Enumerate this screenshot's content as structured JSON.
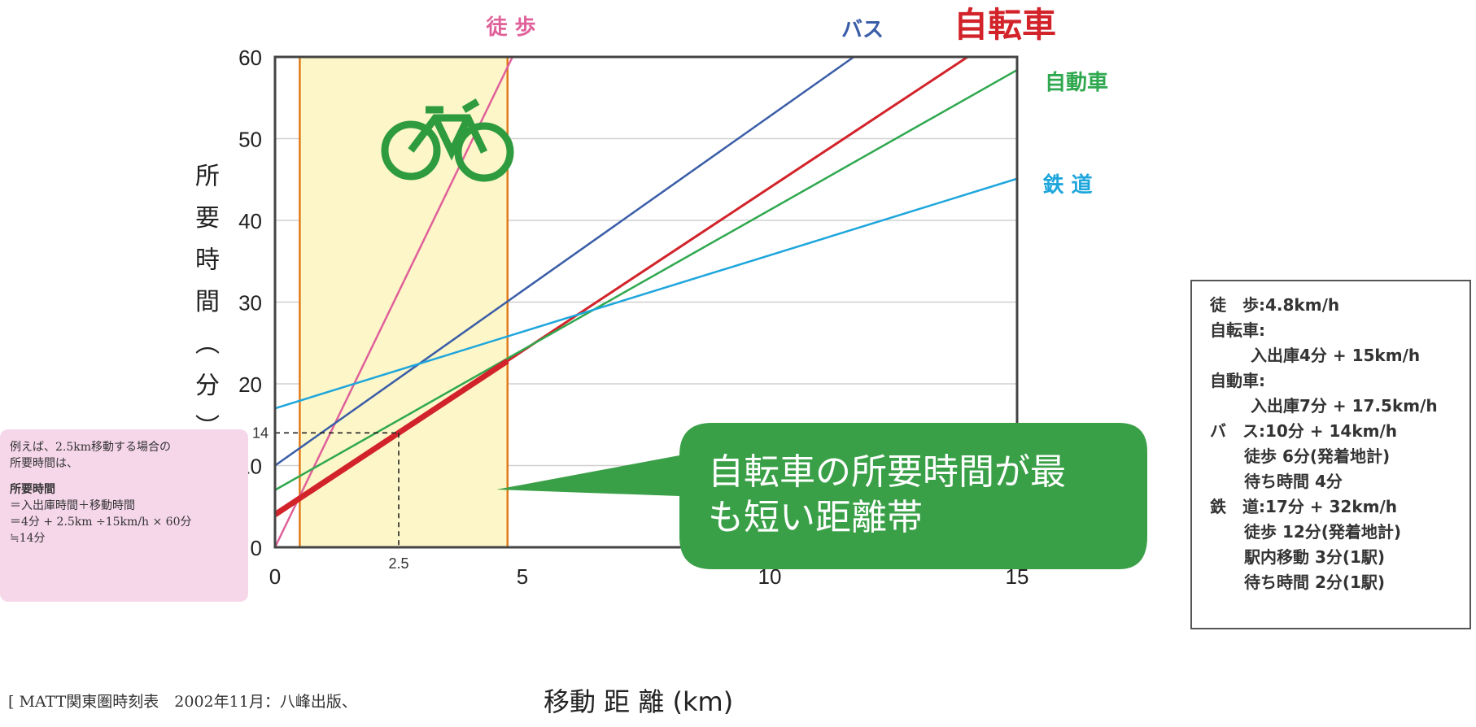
{
  "chart_data": {
    "type": "line",
    "xlabel": "移動 距 離 (km)",
    "ylabel": "所 要 時 間 （ 分 ）",
    "xlim": [
      0,
      15
    ],
    "ylim": [
      0,
      60
    ],
    "xticks": [
      0,
      5,
      10,
      15
    ],
    "yticks": [
      0,
      10,
      20,
      30,
      40,
      50,
      60
    ],
    "grid": true,
    "highlight_range_x": [
      0.5,
      4.7
    ],
    "series": [
      {
        "name": "徒 歩",
        "color": "#e0609a",
        "x": [
          0,
          4.8
        ],
        "y": [
          0,
          60
        ]
      },
      {
        "name": "バス",
        "color": "#3a5da8",
        "x": [
          0,
          11.7
        ],
        "y": [
          10,
          60
        ]
      },
      {
        "name": "自転車",
        "color": "#d2232a",
        "x": [
          0,
          14
        ],
        "y": [
          4,
          60
        ]
      },
      {
        "name": "自動車",
        "color": "#2fa84f",
        "x": [
          0,
          15
        ],
        "y": [
          7,
          58.4
        ]
      },
      {
        "name": "鉄 道",
        "color": "#1ea6dc",
        "x": [
          0,
          15
        ],
        "y": [
          17,
          45.1
        ]
      }
    ],
    "annotation_point": {
      "x": 2.5,
      "y": 14,
      "x_label": "2.5",
      "y_label": "14"
    },
    "bubble_text": [
      "自転車の所要時間が最",
      "も短い距離帯"
    ]
  },
  "example": {
    "line1": "例えば、2.5km移動する場合の",
    "line2": "所要時間は、",
    "bold": "所要時間",
    "line3": "＝入出庫時間＋移動時間",
    "line4": "＝4分 + 2.5km ÷15km/h × 60分",
    "line5": "≒14分"
  },
  "legend_notes": {
    "walk": "徒　歩:4.8km/h",
    "bike_h": "自転車:",
    "bike": "入出庫4分 + 15km/h",
    "car_h": "自動車:",
    "car": "入出庫7分 + 17.5km/h",
    "bus": "バ　ス:10分 + 14km/h",
    "bus_a": "徒歩 6分(発着地計)",
    "bus_b": "待ち時間 4分",
    "rail": "鉄　道:17分 + 32km/h",
    "rail_a": "徒歩 12分(発着地計)",
    "rail_b": "駅内移動 3分(1駅)",
    "rail_c": "待ち時間 2分(1駅)"
  },
  "citation": "[ MATT関東圏時刻表　2002年11月：八峰出版、",
  "colors": {
    "highlight_fill": "#fdf6c8",
    "highlight_border": "#e07a1a",
    "bubble": "#3aa048"
  }
}
